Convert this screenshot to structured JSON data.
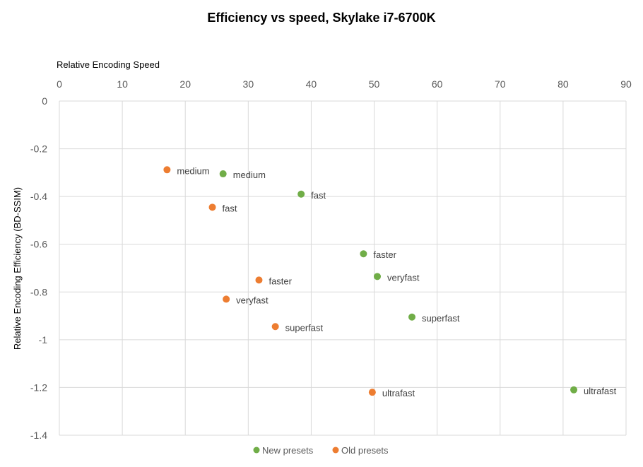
{
  "chart_data": {
    "type": "scatter",
    "title": "Efficiency vs speed, Skylake i7-6700K",
    "xlabel": "Relative Encoding Speed",
    "ylabel": "Relative Encoding Efficiency  (BD-SSIM)",
    "xlim": [
      0,
      90
    ],
    "ylim": [
      -1.4,
      0
    ],
    "xticks": [
      "0",
      "10",
      "20",
      "30",
      "40",
      "50",
      "60",
      "70",
      "80",
      "90"
    ],
    "yticks": [
      "0",
      "-0.2",
      "-0.4",
      "-0.6",
      "-0.8",
      "-1",
      "-1.2",
      "-1.4"
    ],
    "grid": true,
    "x_axis_position": "top",
    "legend_position": "bottom",
    "series": [
      {
        "name": "New presets",
        "color": "#70ad47",
        "points": [
          {
            "x": 26,
            "y": -0.305,
            "label": "medium"
          },
          {
            "x": 38.4,
            "y": -0.39,
            "label": "fast"
          },
          {
            "x": 48.3,
            "y": -0.64,
            "label": "faster"
          },
          {
            "x": 50.5,
            "y": -0.735,
            "label": "veryfast"
          },
          {
            "x": 56,
            "y": -0.905,
            "label": "superfast"
          },
          {
            "x": 81.7,
            "y": -1.21,
            "label": "ultrafast"
          }
        ]
      },
      {
        "name": "Old presets",
        "color": "#ed7d31",
        "points": [
          {
            "x": 17.1,
            "y": -0.288,
            "label": "medium"
          },
          {
            "x": 24.3,
            "y": -0.445,
            "label": "fast"
          },
          {
            "x": 31.7,
            "y": -0.75,
            "label": "faster"
          },
          {
            "x": 26.5,
            "y": -0.83,
            "label": "veryfast"
          },
          {
            "x": 34.3,
            "y": -0.945,
            "label": "superfast"
          },
          {
            "x": 49.7,
            "y": -1.22,
            "label": "ultrafast"
          }
        ]
      }
    ]
  }
}
